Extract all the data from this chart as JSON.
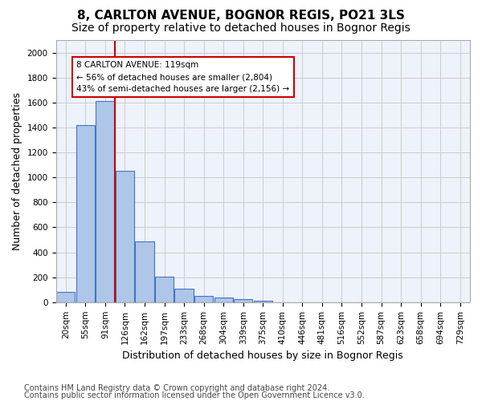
{
  "title": "8, CARLTON AVENUE, BOGNOR REGIS, PO21 3LS",
  "subtitle": "Size of property relative to detached houses in Bognor Regis",
  "xlabel": "Distribution of detached houses by size in Bognor Regis",
  "ylabel": "Number of detached properties",
  "bar_values": [
    80,
    1420,
    1610,
    1050,
    490,
    205,
    105,
    48,
    35,
    22,
    12,
    0,
    0,
    0,
    0,
    0,
    0,
    0,
    0,
    0,
    0
  ],
  "categories": [
    "20sqm",
    "55sqm",
    "91sqm",
    "126sqm",
    "162sqm",
    "197sqm",
    "233sqm",
    "268sqm",
    "304sqm",
    "339sqm",
    "375sqm",
    "410sqm",
    "446sqm",
    "481sqm",
    "516sqm",
    "552sqm",
    "587sqm",
    "623sqm",
    "658sqm",
    "694sqm",
    "729sqm"
  ],
  "bar_color": "#aec6e8",
  "bar_edge_color": "#4472c4",
  "vline_x": 2.5,
  "vline_color": "#cc0000",
  "annotation_text": "8 CARLTON AVENUE: 119sqm\n← 56% of detached houses are smaller (2,804)\n43% of semi-detached houses are larger (2,156) →",
  "annotation_box_color": "#ffffff",
  "annotation_box_edge": "#cc0000",
  "ylim": [
    0,
    2100
  ],
  "yticks": [
    0,
    200,
    400,
    600,
    800,
    1000,
    1200,
    1400,
    1600,
    1800,
    2000
  ],
  "grid_color": "#cccccc",
  "bg_color": "#eef2fa",
  "footer_line1": "Contains HM Land Registry data © Crown copyright and database right 2024.",
  "footer_line2": "Contains public sector information licensed under the Open Government Licence v3.0.",
  "title_fontsize": 11,
  "subtitle_fontsize": 10,
  "label_fontsize": 9,
  "tick_fontsize": 7.5,
  "footer_fontsize": 7
}
